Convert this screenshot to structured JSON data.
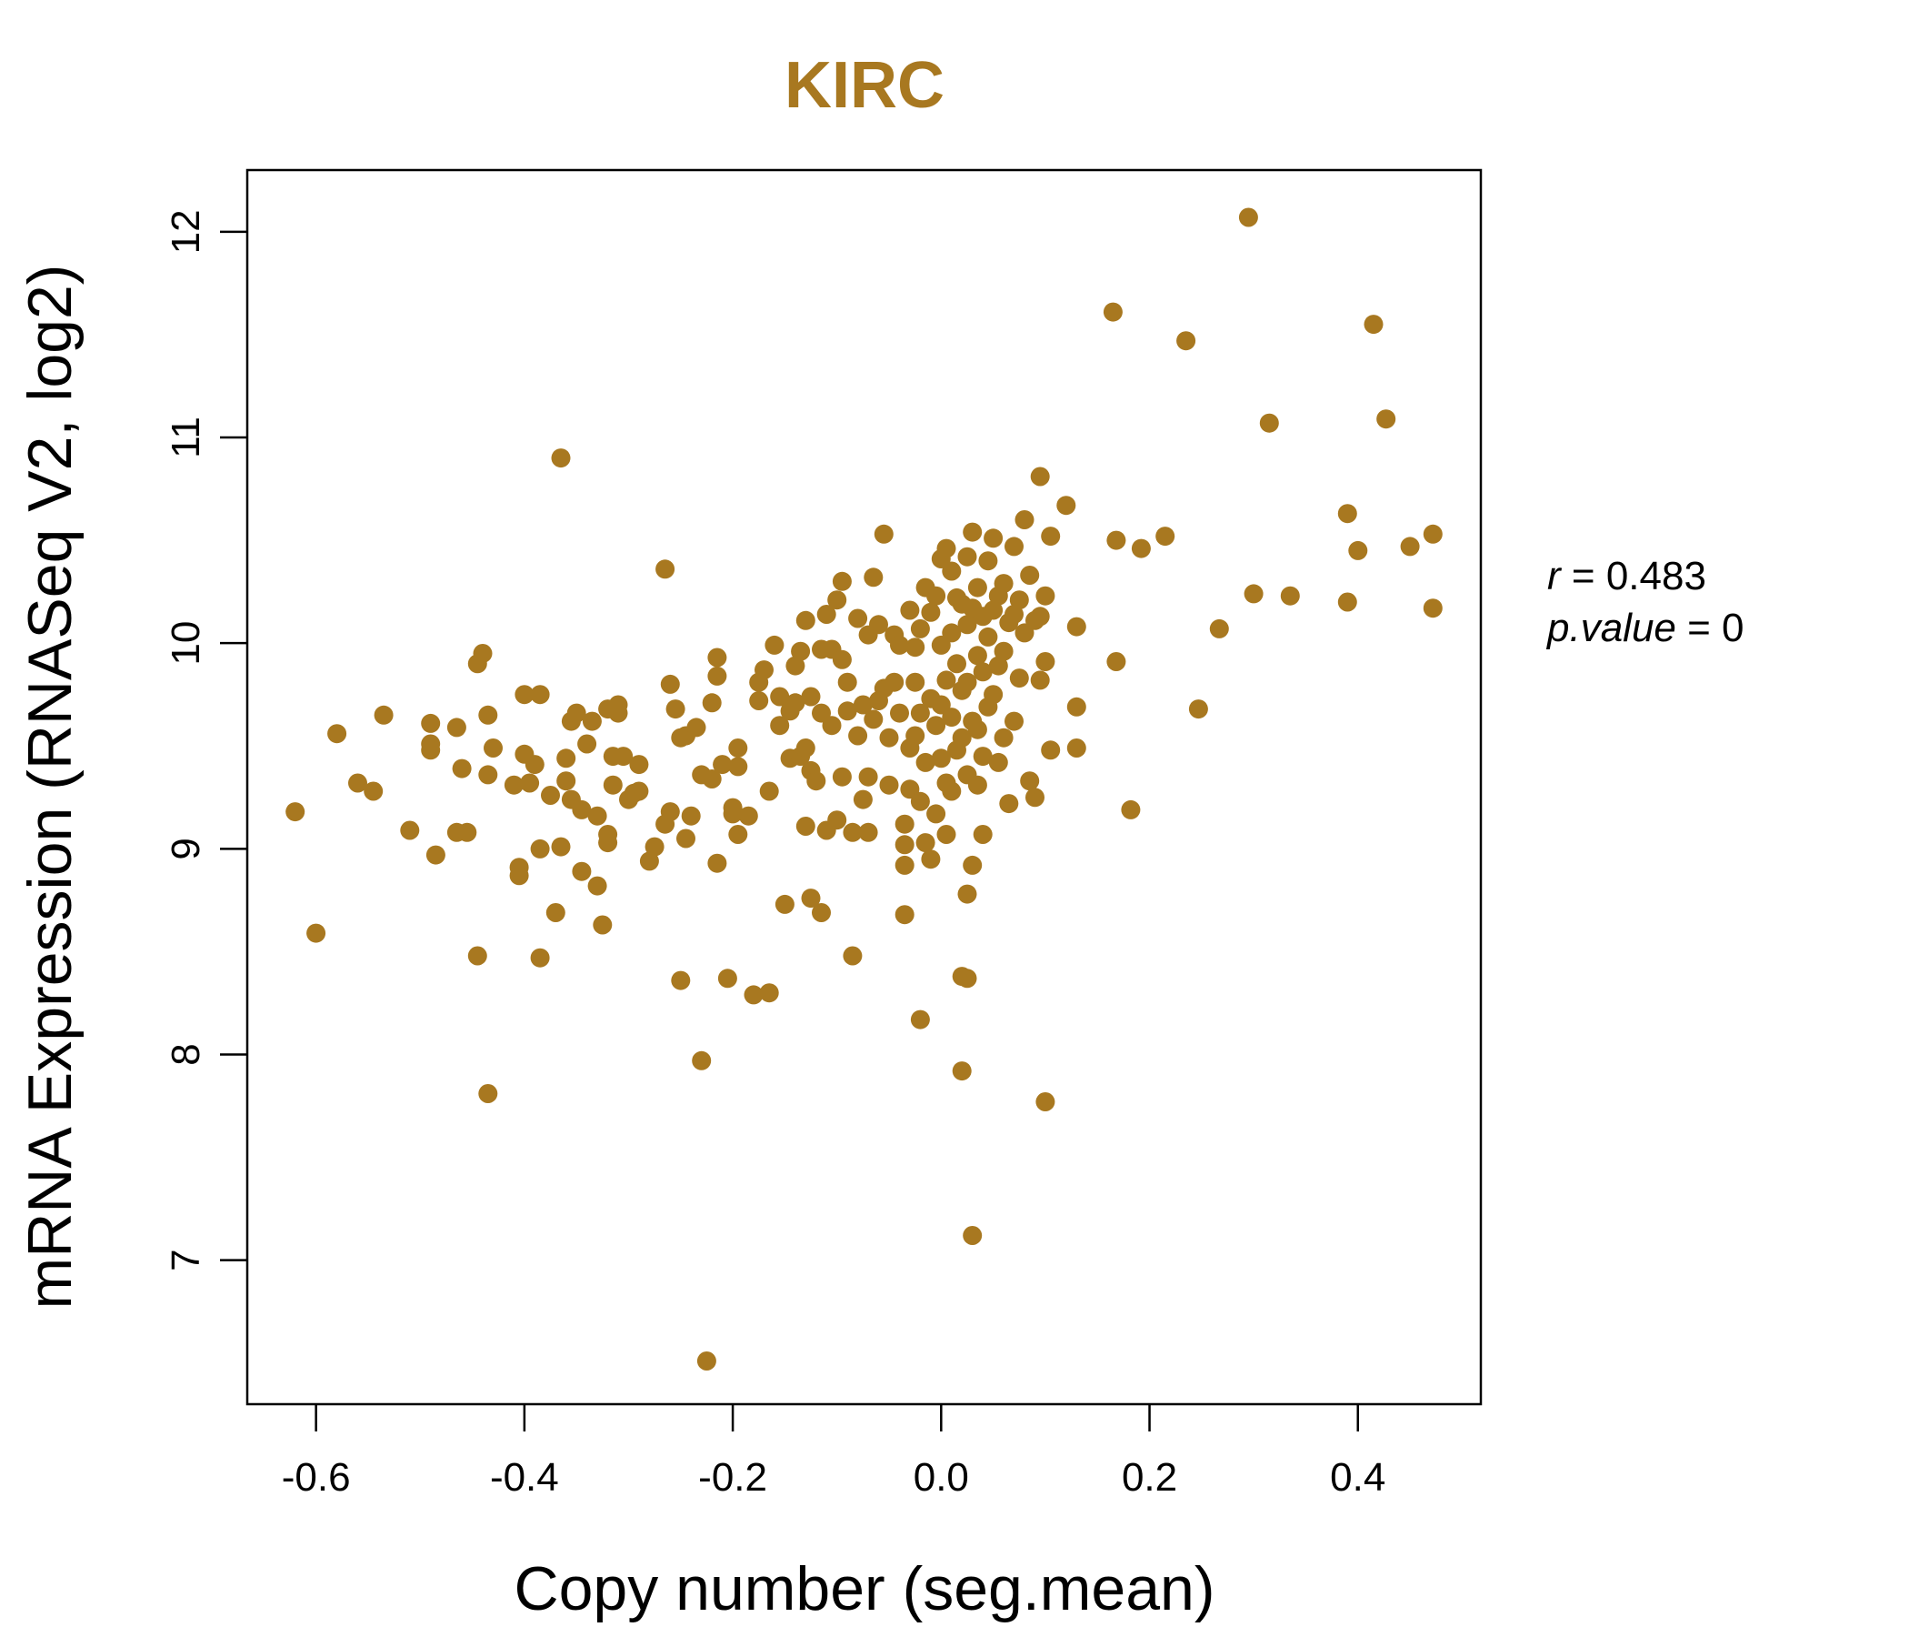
{
  "colors": {
    "points": "#a87820",
    "title": "#a87820",
    "axis": "#000000"
  },
  "chart_data": {
    "type": "scatter",
    "title": "KIRC",
    "xlabel": "Copy number (seg.mean)",
    "ylabel": "mRNA Expression (RNASeq V2, log2)",
    "xlim": [
      -0.666,
      0.518
    ],
    "ylim": [
      6.3,
      12.3
    ],
    "xticks": [
      -0.6,
      -0.4,
      -0.2,
      0.0,
      0.2,
      0.4
    ],
    "xtick_labels": [
      "-0.6",
      "-0.4",
      "-0.2",
      "0.0",
      "0.2",
      "0.4"
    ],
    "yticks": [
      7,
      8,
      9,
      10,
      11,
      12
    ],
    "ytick_labels": [
      "7",
      "8",
      "9",
      "10",
      "11",
      "12"
    ],
    "grid": false,
    "annotation": {
      "r_label": "r",
      "r_value": "0.483",
      "p_label": "p.value",
      "p_value": "0"
    },
    "points": [
      [
        -0.62,
        9.18
      ],
      [
        -0.6,
        8.59
      ],
      [
        -0.58,
        9.56
      ],
      [
        -0.56,
        9.32
      ],
      [
        -0.545,
        9.28
      ],
      [
        -0.535,
        9.65
      ],
      [
        -0.51,
        9.09
      ],
      [
        -0.49,
        9.61
      ],
      [
        -0.49,
        9.51
      ],
      [
        -0.49,
        9.48
      ],
      [
        -0.485,
        8.97
      ],
      [
        -0.465,
        9.59
      ],
      [
        -0.465,
        9.08
      ],
      [
        -0.46,
        9.39
      ],
      [
        -0.455,
        9.08
      ],
      [
        -0.445,
        9.9
      ],
      [
        -0.445,
        8.48
      ],
      [
        -0.44,
        9.95
      ],
      [
        -0.435,
        9.65
      ],
      [
        -0.435,
        9.36
      ],
      [
        -0.435,
        7.81
      ],
      [
        -0.43,
        9.49
      ],
      [
        -0.41,
        9.31
      ],
      [
        -0.405,
        8.91
      ],
      [
        -0.405,
        8.87
      ],
      [
        -0.4,
        9.46
      ],
      [
        -0.4,
        9.75
      ],
      [
        -0.395,
        9.32
      ],
      [
        -0.39,
        9.41
      ],
      [
        -0.385,
        8.47
      ],
      [
        -0.385,
        9.75
      ],
      [
        -0.385,
        9.0
      ],
      [
        -0.375,
        9.26
      ],
      [
        -0.37,
        8.69
      ],
      [
        -0.365,
        10.9
      ],
      [
        -0.365,
        9.01
      ],
      [
        -0.36,
        9.33
      ],
      [
        -0.36,
        9.44
      ],
      [
        -0.355,
        9.62
      ],
      [
        -0.355,
        9.24
      ],
      [
        -0.35,
        9.66
      ],
      [
        -0.345,
        9.19
      ],
      [
        -0.345,
        8.89
      ],
      [
        -0.34,
        9.51
      ],
      [
        -0.335,
        9.62
      ],
      [
        -0.33,
        9.16
      ],
      [
        -0.33,
        8.82
      ],
      [
        -0.325,
        8.63
      ],
      [
        -0.32,
        9.68
      ],
      [
        -0.32,
        9.07
      ],
      [
        -0.32,
        9.03
      ],
      [
        -0.315,
        9.45
      ],
      [
        -0.315,
        9.31
      ],
      [
        -0.31,
        9.7
      ],
      [
        -0.31,
        9.66
      ],
      [
        -0.305,
        9.45
      ],
      [
        -0.3,
        9.24
      ],
      [
        -0.295,
        9.27
      ],
      [
        -0.29,
        9.41
      ],
      [
        -0.29,
        9.28
      ],
      [
        -0.28,
        8.94
      ],
      [
        -0.275,
        9.01
      ],
      [
        -0.265,
        10.36
      ],
      [
        -0.265,
        9.12
      ],
      [
        -0.26,
        9.8
      ],
      [
        -0.26,
        9.18
      ],
      [
        -0.255,
        9.68
      ],
      [
        -0.25,
        9.54
      ],
      [
        -0.25,
        8.36
      ],
      [
        -0.245,
        9.05
      ],
      [
        -0.245,
        9.55
      ],
      [
        -0.24,
        9.16
      ],
      [
        -0.235,
        9.59
      ],
      [
        -0.23,
        9.36
      ],
      [
        -0.23,
        7.97
      ],
      [
        -0.225,
        6.51
      ],
      [
        -0.22,
        9.71
      ],
      [
        -0.22,
        9.34
      ],
      [
        -0.215,
        9.93
      ],
      [
        -0.215,
        9.84
      ],
      [
        -0.215,
        8.93
      ],
      [
        -0.21,
        9.41
      ],
      [
        -0.205,
        8.37
      ],
      [
        -0.2,
        9.2
      ],
      [
        -0.2,
        9.17
      ],
      [
        -0.195,
        9.49
      ],
      [
        -0.195,
        9.4
      ],
      [
        -0.195,
        9.07
      ],
      [
        -0.185,
        9.16
      ],
      [
        -0.18,
        8.29
      ],
      [
        -0.175,
        9.72
      ],
      [
        -0.175,
        9.81
      ],
      [
        -0.17,
        9.87
      ],
      [
        -0.165,
        9.28
      ],
      [
        -0.165,
        8.3
      ],
      [
        -0.16,
        9.99
      ],
      [
        -0.155,
        9.74
      ],
      [
        -0.155,
        9.6
      ],
      [
        -0.15,
        8.73
      ],
      [
        -0.145,
        9.67
      ],
      [
        -0.145,
        9.44
      ],
      [
        -0.14,
        9.89
      ],
      [
        -0.14,
        9.71
      ],
      [
        -0.135,
        9.45
      ],
      [
        -0.135,
        9.96
      ],
      [
        -0.13,
        10.11
      ],
      [
        -0.13,
        9.49
      ],
      [
        -0.13,
        9.11
      ],
      [
        -0.125,
        9.74
      ],
      [
        -0.125,
        9.38
      ],
      [
        -0.125,
        8.76
      ],
      [
        -0.12,
        9.33
      ],
      [
        -0.115,
        9.97
      ],
      [
        -0.115,
        9.66
      ],
      [
        -0.115,
        8.69
      ],
      [
        -0.11,
        10.14
      ],
      [
        -0.11,
        9.09
      ],
      [
        -0.105,
        9.97
      ],
      [
        -0.105,
        9.6
      ],
      [
        -0.1,
        10.21
      ],
      [
        -0.1,
        9.14
      ],
      [
        -0.095,
        10.3
      ],
      [
        -0.095,
        9.92
      ],
      [
        -0.095,
        9.35
      ],
      [
        -0.09,
        9.81
      ],
      [
        -0.09,
        9.67
      ],
      [
        -0.085,
        8.48
      ],
      [
        -0.085,
        9.08
      ],
      [
        -0.08,
        10.12
      ],
      [
        -0.08,
        9.55
      ],
      [
        -0.075,
        9.7
      ],
      [
        -0.075,
        9.24
      ],
      [
        -0.07,
        10.04
      ],
      [
        -0.07,
        9.35
      ],
      [
        -0.07,
        9.08
      ],
      [
        -0.065,
        10.32
      ],
      [
        -0.065,
        9.63
      ],
      [
        -0.06,
        10.09
      ],
      [
        -0.06,
        9.72
      ],
      [
        -0.055,
        10.53
      ],
      [
        -0.055,
        9.78
      ],
      [
        -0.05,
        9.54
      ],
      [
        -0.05,
        9.31
      ],
      [
        -0.045,
        9.81
      ],
      [
        -0.045,
        10.04
      ],
      [
        -0.04,
        9.99
      ],
      [
        -0.04,
        9.66
      ],
      [
        -0.035,
        9.12
      ],
      [
        -0.035,
        8.68
      ],
      [
        -0.035,
        9.02
      ],
      [
        -0.035,
        8.92
      ],
      [
        -0.03,
        10.16
      ],
      [
        -0.03,
        9.49
      ],
      [
        -0.03,
        9.29
      ],
      [
        -0.025,
        9.98
      ],
      [
        -0.025,
        9.81
      ],
      [
        -0.025,
        9.55
      ],
      [
        -0.02,
        10.07
      ],
      [
        -0.02,
        9.66
      ],
      [
        -0.02,
        9.23
      ],
      [
        -0.02,
        8.17
      ],
      [
        -0.015,
        10.27
      ],
      [
        -0.015,
        9.42
      ],
      [
        -0.015,
        9.03
      ],
      [
        -0.01,
        10.15
      ],
      [
        -0.01,
        9.73
      ],
      [
        -0.01,
        8.95
      ],
      [
        -0.005,
        10.23
      ],
      [
        -0.005,
        9.6
      ],
      [
        -0.005,
        9.17
      ],
      [
        0.0,
        10.41
      ],
      [
        0.0,
        9.99
      ],
      [
        0.0,
        9.7
      ],
      [
        0.0,
        9.44
      ],
      [
        0.005,
        10.46
      ],
      [
        0.005,
        9.82
      ],
      [
        0.005,
        9.32
      ],
      [
        0.005,
        9.07
      ],
      [
        0.01,
        10.35
      ],
      [
        0.01,
        10.05
      ],
      [
        0.01,
        9.64
      ],
      [
        0.01,
        9.28
      ],
      [
        0.015,
        10.22
      ],
      [
        0.015,
        9.9
      ],
      [
        0.015,
        9.48
      ],
      [
        0.02,
        10.19
      ],
      [
        0.02,
        9.77
      ],
      [
        0.02,
        9.54
      ],
      [
        0.02,
        8.38
      ],
      [
        0.02,
        7.92
      ],
      [
        0.025,
        10.42
      ],
      [
        0.025,
        10.09
      ],
      [
        0.025,
        9.81
      ],
      [
        0.025,
        9.36
      ],
      [
        0.025,
        8.78
      ],
      [
        0.025,
        8.37
      ],
      [
        0.03,
        10.54
      ],
      [
        0.03,
        10.17
      ],
      [
        0.03,
        9.62
      ],
      [
        0.03,
        8.92
      ],
      [
        0.03,
        7.12
      ],
      [
        0.035,
        10.27
      ],
      [
        0.035,
        9.94
      ],
      [
        0.035,
        9.58
      ],
      [
        0.035,
        9.31
      ],
      [
        0.04,
        10.13
      ],
      [
        0.04,
        9.86
      ],
      [
        0.04,
        9.45
      ],
      [
        0.04,
        9.07
      ],
      [
        0.045,
        10.4
      ],
      [
        0.045,
        10.03
      ],
      [
        0.045,
        9.69
      ],
      [
        0.05,
        10.51
      ],
      [
        0.05,
        10.16
      ],
      [
        0.05,
        9.75
      ],
      [
        0.055,
        10.23
      ],
      [
        0.055,
        9.89
      ],
      [
        0.055,
        9.42
      ],
      [
        0.06,
        10.29
      ],
      [
        0.06,
        9.96
      ],
      [
        0.06,
        9.54
      ],
      [
        0.065,
        10.1
      ],
      [
        0.065,
        9.22
      ],
      [
        0.07,
        10.47
      ],
      [
        0.07,
        10.14
      ],
      [
        0.07,
        9.62
      ],
      [
        0.075,
        10.21
      ],
      [
        0.075,
        9.83
      ],
      [
        0.08,
        10.6
      ],
      [
        0.08,
        10.05
      ],
      [
        0.085,
        10.33
      ],
      [
        0.085,
        9.33
      ],
      [
        0.09,
        10.11
      ],
      [
        0.09,
        9.25
      ],
      [
        0.095,
        10.81
      ],
      [
        0.095,
        10.13
      ],
      [
        0.095,
        9.82
      ],
      [
        0.1,
        10.23
      ],
      [
        0.1,
        9.91
      ],
      [
        0.1,
        7.77
      ],
      [
        0.105,
        10.52
      ],
      [
        0.105,
        9.48
      ],
      [
        0.12,
        10.67
      ],
      [
        0.13,
        10.08
      ],
      [
        0.13,
        9.69
      ],
      [
        0.13,
        9.49
      ],
      [
        0.165,
        11.61
      ],
      [
        0.168,
        10.5
      ],
      [
        0.168,
        9.91
      ],
      [
        0.182,
        9.19
      ],
      [
        0.192,
        10.46
      ],
      [
        0.215,
        10.52
      ],
      [
        0.235,
        11.47
      ],
      [
        0.247,
        9.68
      ],
      [
        0.267,
        10.07
      ],
      [
        0.295,
        12.07
      ],
      [
        0.3,
        10.24
      ],
      [
        0.315,
        11.07
      ],
      [
        0.335,
        10.23
      ],
      [
        0.39,
        10.2
      ],
      [
        0.39,
        10.63
      ],
      [
        0.4,
        10.45
      ],
      [
        0.415,
        11.55
      ],
      [
        0.427,
        11.09
      ],
      [
        0.45,
        10.47
      ],
      [
        0.472,
        10.53
      ],
      [
        0.472,
        10.17
      ]
    ]
  }
}
